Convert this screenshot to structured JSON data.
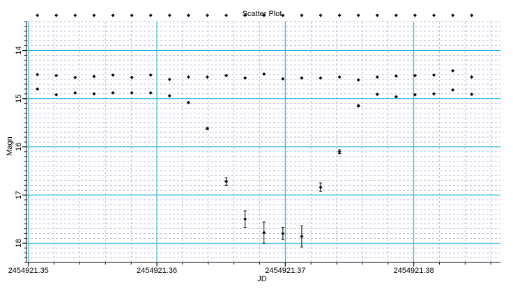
{
  "chart_data": {
    "type": "scatter",
    "title": "Scatter Plot",
    "xlabel": "JD",
    "ylabel": "Magn",
    "y_inverted": true,
    "xlim": [
      2454921.34985,
      2454921.38675
    ],
    "ylim": [
      18.4,
      13.4
    ],
    "x_ticks": [
      2454921.35,
      2454921.36,
      2454921.37,
      2454921.38
    ],
    "x_tick_labels": [
      "2454921.35",
      "2454921.36",
      "2454921.37",
      "2454921.38"
    ],
    "y_ticks": [
      14,
      15,
      16,
      17,
      18
    ],
    "y_tick_labels": [
      "14",
      "15",
      "16",
      "17",
      "18"
    ],
    "grid": true,
    "colors": {
      "major_grid": "#1ab4e0",
      "minor_grid": "#b8b8e0",
      "marker": "#000000",
      "axis": "#000000"
    },
    "series": [
      {
        "x": [
          2454921.3507,
          2454921.35217,
          2454921.35364,
          2454921.35511,
          2454921.35658,
          2454921.35805,
          2454921.35952,
          2454921.36099,
          2454921.36246,
          2454921.36393,
          2454921.3654,
          2454921.36687,
          2454921.36834,
          2454921.36981,
          2454921.37128,
          2454921.37275,
          2454921.37422,
          2454921.37569,
          2454921.37716,
          2454921.37863,
          2454921.3801,
          2454921.38157,
          2454921.38304,
          2454921.38451
        ],
        "y": [
          13.27,
          13.27,
          13.27,
          13.27,
          13.27,
          13.27,
          13.27,
          13.27,
          13.27,
          13.27,
          13.27,
          13.27,
          13.27,
          13.27,
          13.27,
          13.27,
          13.27,
          13.27,
          13.27,
          13.27,
          13.27,
          13.27,
          13.27,
          13.27
        ]
      },
      {
        "x": [
          2454921.3507,
          2454921.35217,
          2454921.35364,
          2454921.35511,
          2454921.35658,
          2454921.35805,
          2454921.35952,
          2454921.36099,
          2454921.36246,
          2454921.36393,
          2454921.3654,
          2454921.36687,
          2454921.36834,
          2454921.36981,
          2454921.37128,
          2454921.37275,
          2454921.37422,
          2454921.37569,
          2454921.37716,
          2454921.37863,
          2454921.3801,
          2454921.38157,
          2454921.38304,
          2454921.38451
        ],
        "y": [
          14.5,
          14.52,
          14.56,
          14.54,
          14.51,
          14.56,
          14.51,
          14.6,
          14.55,
          14.55,
          14.52,
          14.57,
          14.49,
          14.59,
          14.57,
          14.57,
          14.55,
          14.61,
          14.55,
          14.53,
          14.52,
          14.51,
          14.42,
          14.55
        ]
      },
      {
        "x": [
          2454921.3507,
          2454921.35217,
          2454921.35364,
          2454921.35511,
          2454921.35658,
          2454921.35805,
          2454921.35952,
          2454921.36099,
          2454921.36246,
          2454921.36393,
          2454921.3654,
          2454921.36687,
          2454921.36834,
          2454921.36981,
          2454921.37128,
          2454921.37275,
          2454921.37422,
          2454921.37569,
          2454921.37716,
          2454921.37863,
          2454921.3801,
          2454921.38157,
          2454921.38304,
          2454921.38451
        ],
        "y": [
          14.8,
          14.92,
          14.88,
          14.9,
          14.88,
          14.88,
          14.88,
          14.94,
          15.08,
          15.62,
          16.72,
          17.5,
          17.78,
          17.8,
          17.86,
          16.84,
          16.1,
          15.15,
          14.91,
          14.96,
          14.92,
          14.9,
          14.82,
          14.91
        ],
        "y_error": [
          0,
          0,
          0,
          0,
          0,
          0,
          0,
          0,
          0,
          0.02,
          0.08,
          0.17,
          0.22,
          0.13,
          0.22,
          0.09,
          0.04,
          0.02,
          0,
          0,
          0,
          0,
          0,
          0
        ]
      }
    ]
  }
}
